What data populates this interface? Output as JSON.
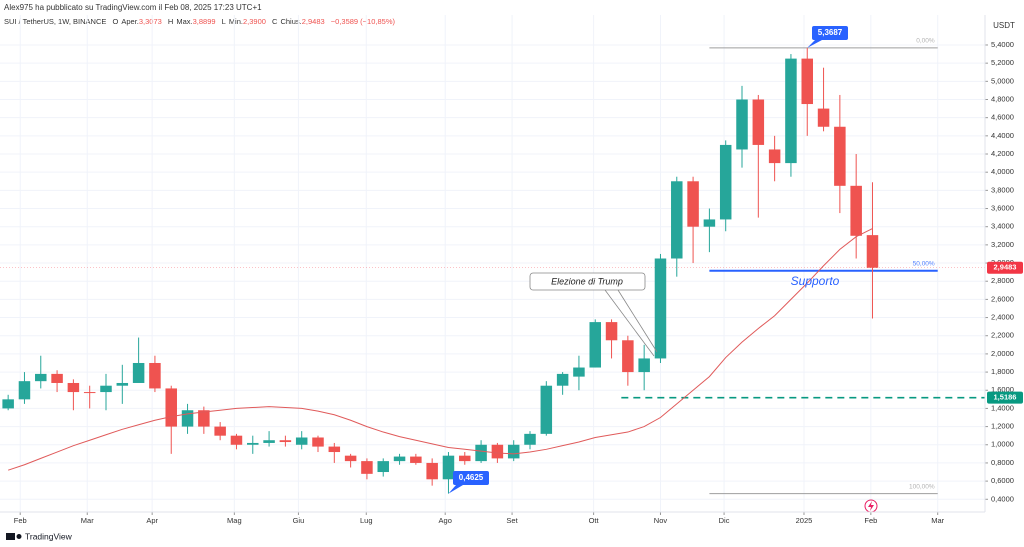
{
  "header": {
    "publisher": "Alex975 ha pubblicato su TradingView.com il Feb 08, 2025 17:23 UTC+1",
    "symbol": "SUI / TetherUS, 1W, BINANCE",
    "ohlc": [
      {
        "key": "O",
        "label": "Aper.",
        "value": "3,3073"
      },
      {
        "key": "H",
        "label": "Max.",
        "value": "3,8899"
      },
      {
        "key": "L",
        "label": "Min.",
        "value": "2,3900"
      },
      {
        "key": "C",
        "label": "Chius.",
        "value": "2,9483"
      }
    ],
    "change": "−0,3589 (−10,85%)"
  },
  "chart_data": {
    "type": "candlestick",
    "unit": "USDT",
    "up_color": "#26a69a",
    "down_color": "#ef5350",
    "open": [
      1.4,
      1.5,
      1.7,
      1.78,
      1.68,
      1.58,
      1.58,
      1.65,
      1.68,
      1.9,
      1.62,
      1.2,
      1.38,
      1.2,
      1.1,
      1.0,
      1.02,
      1.05,
      1.0,
      1.08,
      0.98,
      0.88,
      0.82,
      0.7,
      0.82,
      0.87,
      0.8,
      0.62,
      0.88,
      0.82,
      1.0,
      0.85,
      1.0,
      1.12,
      1.65,
      1.75,
      1.85,
      2.35,
      2.15,
      1.8,
      1.95,
      3.05,
      3.9,
      3.4,
      3.48,
      4.25,
      4.8,
      4.25,
      4.1,
      5.25,
      4.7,
      4.5,
      3.85,
      3.3073
    ],
    "high": [
      1.55,
      1.8,
      1.98,
      1.82,
      1.72,
      1.65,
      1.78,
      1.88,
      2.18,
      1.98,
      1.65,
      1.45,
      1.42,
      1.25,
      1.12,
      1.1,
      1.15,
      1.1,
      1.15,
      1.1,
      1.02,
      0.9,
      0.85,
      0.85,
      0.9,
      0.9,
      0.85,
      0.92,
      0.92,
      1.05,
      1.02,
      1.05,
      1.15,
      1.7,
      1.8,
      1.98,
      2.38,
      2.38,
      2.2,
      2.1,
      3.1,
      3.95,
      3.95,
      3.6,
      4.35,
      4.95,
      4.85,
      4.4,
      5.3,
      5.3687,
      5.15,
      4.85,
      4.2,
      3.8899
    ],
    "low": [
      1.38,
      1.45,
      1.62,
      1.58,
      1.38,
      1.4,
      1.38,
      1.45,
      1.7,
      1.58,
      0.9,
      1.12,
      1.12,
      1.05,
      0.95,
      0.9,
      0.98,
      0.98,
      0.95,
      0.92,
      0.8,
      0.75,
      0.62,
      0.65,
      0.78,
      0.78,
      0.55,
      0.4625,
      0.78,
      0.8,
      0.8,
      0.82,
      0.95,
      1.1,
      1.55,
      1.6,
      1.85,
      1.95,
      1.65,
      1.6,
      1.9,
      2.85,
      3.0,
      3.12,
      3.35,
      4.05,
      3.5,
      3.9,
      3.95,
      4.4,
      4.45,
      3.55,
      3.05,
      2.39
    ],
    "close": [
      1.5,
      1.7,
      1.78,
      1.68,
      1.58,
      1.57,
      1.65,
      1.68,
      1.9,
      1.62,
      1.2,
      1.38,
      1.2,
      1.1,
      1.0,
      1.02,
      1.05,
      1.03,
      1.08,
      0.98,
      0.92,
      0.82,
      0.68,
      0.82,
      0.87,
      0.8,
      0.62,
      0.88,
      0.82,
      1.0,
      0.85,
      1.0,
      1.12,
      1.65,
      1.78,
      1.85,
      2.35,
      2.15,
      1.8,
      1.95,
      3.05,
      3.9,
      3.4,
      3.48,
      4.3,
      4.8,
      4.3,
      4.1,
      5.25,
      4.75,
      4.5,
      3.85,
      3.3,
      2.9483
    ],
    "moving_average": {
      "color": "#e05a5a",
      "values": [
        0.72,
        0.78,
        0.85,
        0.92,
        0.99,
        1.05,
        1.11,
        1.17,
        1.22,
        1.27,
        1.31,
        1.34,
        1.36,
        1.38,
        1.4,
        1.41,
        1.42,
        1.41,
        1.4,
        1.37,
        1.33,
        1.27,
        1.2,
        1.14,
        1.09,
        1.05,
        1.01,
        0.97,
        0.95,
        0.93,
        0.91,
        0.9,
        0.92,
        0.95,
        0.99,
        1.03,
        1.08,
        1.11,
        1.14,
        1.2,
        1.3,
        1.45,
        1.6,
        1.75,
        1.96,
        2.13,
        2.28,
        2.42,
        2.6,
        2.78,
        2.97,
        3.15,
        3.29,
        3.38
      ]
    },
    "xlim": [
      -0.5,
      59.9
    ],
    "xticks": [
      {
        "value": 0.74,
        "label": "Feb"
      },
      {
        "value": 4.85,
        "label": "Mar"
      },
      {
        "value": 8.83,
        "label": "Apr"
      },
      {
        "value": 13.87,
        "label": "Mag"
      },
      {
        "value": 17.8,
        "label": "Giu"
      },
      {
        "value": 21.96,
        "label": "Lug"
      },
      {
        "value": 26.8,
        "label": "Ago"
      },
      {
        "value": 30.9,
        "label": "Set"
      },
      {
        "value": 35.9,
        "label": "Ott"
      },
      {
        "value": 40.0,
        "label": "Nov"
      },
      {
        "value": 43.9,
        "label": "Dic"
      },
      {
        "value": 48.8,
        "label": "2025"
      },
      {
        "value": 52.9,
        "label": "Feb"
      },
      {
        "value": 57.0,
        "label": "Mar"
      }
    ],
    "ylim": [
      0.26,
      5.73
    ],
    "yticks": [
      {
        "value": 0.4,
        "label": "0,4000"
      },
      {
        "value": 0.6,
        "label": "0,6000"
      },
      {
        "value": 0.8,
        "label": "0,8000"
      },
      {
        "value": 1.0,
        "label": "1,0000"
      },
      {
        "value": 1.2,
        "label": "1,2000"
      },
      {
        "value": 1.4,
        "label": "1,4000"
      },
      {
        "value": 1.6,
        "label": "1,6000"
      },
      {
        "value": 1.8,
        "label": "1,8000"
      },
      {
        "value": 2.0,
        "label": "2,0000"
      },
      {
        "value": 2.2,
        "label": "2,2000"
      },
      {
        "value": 2.4,
        "label": "2,4000"
      },
      {
        "value": 2.6,
        "label": "2,6000"
      },
      {
        "value": 2.8,
        "label": "2,8000"
      },
      {
        "value": 3.0,
        "label": "3,0000"
      },
      {
        "value": 3.2,
        "label": "3,2000"
      },
      {
        "value": 3.4,
        "label": "3,4000"
      },
      {
        "value": 3.6,
        "label": "3,6000"
      },
      {
        "value": 3.8,
        "label": "3,8000"
      },
      {
        "value": 4.0,
        "label": "4,0000"
      },
      {
        "value": 4.2,
        "label": "4,2000"
      },
      {
        "value": 4.4,
        "label": "4,4000"
      },
      {
        "value": 4.6,
        "label": "4,6000"
      },
      {
        "value": 4.8,
        "label": "4,8000"
      },
      {
        "value": 5.0,
        "label": "5,0000"
      },
      {
        "value": 5.2,
        "label": "5,2000"
      },
      {
        "value": 5.4,
        "label": "5,4000"
      }
    ],
    "grid": true,
    "price_labels": [
      {
        "value": 2.9483,
        "label": "2,9483",
        "color": "#f23645"
      },
      {
        "value": 1.5186,
        "label": "1,5186",
        "color": "#089981"
      }
    ],
    "fib_levels": [
      {
        "value": 5.3687,
        "label": "0,00%",
        "color": "#9e9e9e"
      },
      {
        "value": 2.9156,
        "label": "50,00%",
        "color": "#2962ff"
      },
      {
        "value": 0.4625,
        "label": "100,00%",
        "color": "#9e9e9e"
      }
    ],
    "callouts": [
      {
        "value": 5.3687,
        "label": "5,3687"
      },
      {
        "value": 0.4625,
        "label": "0,4625"
      }
    ],
    "annotations": {
      "election": "Elezione di Trump",
      "support": "Supporto"
    }
  },
  "footer": {
    "brand": "TradingView"
  }
}
